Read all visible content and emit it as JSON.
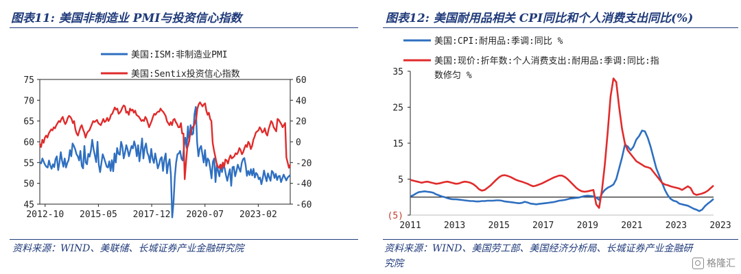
{
  "left": {
    "title": "图表11:  美国非制造业 PMI与投资信心指数",
    "source": "资料来源：WIND、美联储、长城证券产业金融研究院",
    "legend": [
      "美国:ISM:非制造业PMI",
      "美国:Sentix投资信心指数"
    ]
  },
  "right": {
    "title": "图表12:  美国耐用品相关 CPI同比和个人消费支出同比(%)",
    "source_line1": "资料来源：WIND、美国劳工部、美国经济分析局、长城证券产业金融研",
    "source_line2": "究院",
    "legend": [
      "美国:CPI:耐用品:季调:同比 %",
      "美国:现价:折年数:个人消费支出:耐用品:季调:同比:指",
      "数修匀 %"
    ]
  },
  "watermark": "格隆汇",
  "chart_data": [
    {
      "type": "line",
      "x_tick_labels": [
        "2012-10",
        "2015-05",
        "2017-12",
        "2020-07",
        "2023-02"
      ],
      "y_left": {
        "ticks": [
          "45",
          "50",
          "55",
          "60",
          "65",
          "70",
          "75"
        ],
        "ylim": [
          45,
          75
        ]
      },
      "y_right": {
        "ticks": [
          "-60",
          "-40",
          "-20",
          "0",
          "20",
          "40",
          "60"
        ],
        "ylim": [
          -60,
          60
        ]
      },
      "series": [
        {
          "name": "美国:ISM:非制造业PMI",
          "axis": "left",
          "color": "#2e6fc0",
          "values": [
            55.0,
            54.8,
            56.0,
            55.2,
            54.5,
            54.0,
            53.8,
            55.5,
            54.3,
            53.5,
            54.6,
            53.9,
            55.8,
            56.5,
            53.2,
            55.0,
            57.5,
            55.4,
            54.0,
            56.0,
            53.8,
            54.9,
            55.6,
            58.0,
            56.5,
            59.6,
            59.0,
            58.2,
            57.0,
            56.5,
            55.5,
            57.8,
            54.2,
            53.6,
            59.0,
            55.0,
            54.6,
            57.1,
            56.4,
            57.9,
            60.5,
            58.2,
            56.7,
            55.1,
            60.0,
            54.5,
            52.7,
            54.9,
            57.0,
            56.1,
            55.1,
            54.0,
            53.8,
            55.3,
            53.0,
            55.6,
            52.9,
            57.2,
            55.0,
            58.5,
            57.1,
            56.9,
            60.0,
            58.8,
            56.0,
            57.4,
            59.2,
            58.1,
            56.5,
            57.8,
            59.0,
            58.4,
            60.1,
            58.9,
            56.5,
            59.2,
            55.3,
            57.8,
            60.8,
            56.0,
            58.5,
            59.6,
            57.4,
            56.6,
            55.0,
            58.3,
            56.0,
            54.9,
            57.2,
            55.5,
            53.6,
            54.6,
            55.9,
            56.3,
            53.0,
            55.7,
            57.2,
            52.4,
            54.6,
            55.8,
            52.0,
            41.8,
            45.4,
            51.5,
            55.0,
            57.0,
            57.2,
            57.8,
            56.0,
            55.5,
            58.9,
            61.0,
            58.5,
            63.7,
            60.1,
            64.0,
            61.7,
            62.0,
            66.7,
            68.4,
            59.9,
            56.5,
            58.4,
            59.0,
            57.0,
            55.0,
            58.0,
            54.2,
            56.0,
            55.5,
            53.6,
            51.2,
            55.2,
            56.0,
            50.3,
            54.5,
            53.0,
            51.7,
            54.5,
            52.7,
            54.5,
            53.6,
            51.9,
            50.6,
            52.2,
            53.4,
            49.4,
            53.9,
            54.0,
            51.7,
            52.9,
            54.5,
            53.6,
            52.8,
            54.9,
            55.8,
            56.1,
            54.4,
            51.8,
            53.0,
            52.0,
            53.4,
            51.9,
            53.5,
            51.4,
            52.5,
            52.1,
            51.0,
            51.4,
            49.8,
            51.2,
            53.1,
            51.7,
            50.5,
            52.4,
            51.5,
            50.6,
            53.0,
            52.6,
            51.3,
            52.3,
            50.8,
            51.7,
            51.8,
            50.3,
            51.2,
            52.1,
            51.4,
            50.7,
            51.4,
            51.7,
            52.0
          ]
        },
        {
          "name": "美国:Sentix投资信心指数",
          "axis": "right",
          "color": "#e02b2b",
          "values": [
            -2,
            -5,
            2,
            -1,
            4,
            6,
            4,
            8,
            10,
            12,
            11,
            14,
            13,
            16,
            18,
            20,
            19,
            22,
            24,
            20,
            17,
            19,
            23,
            25,
            24,
            22,
            18,
            20,
            12,
            8,
            6,
            10,
            14,
            16,
            12,
            9,
            4,
            8,
            10,
            11,
            14,
            17,
            20,
            19,
            20,
            21,
            18,
            17,
            16,
            19,
            22,
            19,
            20,
            23,
            20,
            22,
            26,
            27,
            30,
            33,
            31,
            32,
            27,
            28,
            30,
            33,
            35,
            34,
            28,
            29,
            26,
            32,
            30,
            31,
            28,
            30,
            26,
            25,
            24,
            22,
            20,
            21,
            20,
            24,
            22,
            18,
            14,
            17,
            20,
            24,
            27,
            26,
            28,
            29,
            29,
            32,
            30,
            29,
            27,
            25,
            20,
            18,
            16,
            19,
            16,
            21,
            22,
            19,
            17,
            14,
            14,
            18,
            8,
            8,
            -36,
            -20,
            -6,
            -2,
            5,
            10,
            14,
            15,
            18,
            22,
            32,
            36,
            38,
            36,
            34,
            36,
            37,
            30,
            26,
            28,
            22,
            20,
            -1,
            -8,
            -14,
            -20,
            -24,
            -25,
            -22,
            -26,
            -20,
            -24,
            -17,
            -18,
            -21,
            -16,
            -13,
            -16,
            -15,
            -14,
            -11,
            -12,
            -10,
            -6,
            -8,
            -12,
            -10,
            -6,
            -3,
            -5,
            0,
            -2,
            -7,
            -4,
            2,
            5,
            9,
            10,
            11,
            14,
            12,
            9,
            10,
            13,
            8,
            6,
            12,
            16,
            20,
            18,
            14,
            12,
            10,
            22,
            21,
            19,
            17,
            14,
            16,
            18,
            -15,
            -20,
            -25,
            -22
          ]
        }
      ]
    },
    {
      "type": "line",
      "x_tick_labels": [
        "2011",
        "2013",
        "2015",
        "2017",
        "2019",
        "2021",
        "2023",
        "2023"
      ],
      "y": {
        "ticks": [
          "(5)",
          "5",
          "15",
          "25",
          "35"
        ],
        "ylim": [
          -5,
          35
        ]
      },
      "series": [
        {
          "name": "美国:CPI:耐用品:季调:同比 %",
          "color": "#2e6fc0",
          "values": [
            0.2,
            0.5,
            1.0,
            1.4,
            1.5,
            1.6,
            1.5,
            1.4,
            1.2,
            0.8,
            0.5,
            0.2,
            0.0,
            -0.3,
            -0.5,
            -0.6,
            -0.6,
            -0.7,
            -0.8,
            -0.9,
            -1.0,
            -1.1,
            -1.1,
            -1.2,
            -1.2,
            -1.1,
            -1.1,
            -1.0,
            -1.0,
            -1.0,
            -0.9,
            -0.9,
            -1.0,
            -1.2,
            -1.3,
            -1.4,
            -1.5,
            -1.6,
            -1.7,
            -1.6,
            -1.3,
            -1.5,
            -1.8,
            -1.9,
            -2.0,
            -1.9,
            -1.8,
            -1.7,
            -1.6,
            -1.5,
            -1.4,
            -1.2,
            -1.0,
            -0.9,
            -0.8,
            -0.6,
            -0.4,
            -0.3,
            -0.2,
            -0.1,
            0.1,
            0.3,
            0.4,
            0.3,
            0.2,
            -0.1,
            -0.8,
            1.0,
            2.0,
            2.6,
            3.0,
            3.5,
            5.0,
            8.0,
            11.0,
            14.5,
            14.1,
            13.0,
            14.0,
            16.0,
            17.0,
            18.5,
            18.3,
            16.5,
            14.0,
            11.0,
            8.0,
            6.0,
            4.0,
            2.0,
            0.5,
            -0.5,
            -1.0,
            -1.2,
            -1.8,
            -2.0,
            -2.2,
            -2.4,
            -2.8,
            -3.2,
            -3.5,
            -3.9,
            -3.5,
            -2.5,
            -1.8,
            -1.2,
            -0.5
          ]
        },
        {
          "name": "美国:现价:折年数:个人消费支出:耐用品:季调:同比:指数修匀 %",
          "color": "#e02b2b",
          "values": [
            4.8,
            4.6,
            4.4,
            4.2,
            4.0,
            4.2,
            4.3,
            4.1,
            3.9,
            3.7,
            3.8,
            4.0,
            4.2,
            4.3,
            4.1,
            3.9,
            3.7,
            3.8,
            4.1,
            4.3,
            4.2,
            4.0,
            3.6,
            3.0,
            2.2,
            1.8,
            2.0,
            2.6,
            3.2,
            4.0,
            4.8,
            5.5,
            6.0,
            6.1,
            5.9,
            5.6,
            5.2,
            4.8,
            4.5,
            4.3,
            4.0,
            3.7,
            3.3,
            3.0,
            3.2,
            3.5,
            3.8,
            4.2,
            4.6,
            5.0,
            5.4,
            5.7,
            6.0,
            6.0,
            5.6,
            5.0,
            4.2,
            3.4,
            2.6,
            2.0,
            1.6,
            1.5,
            1.6,
            1.8,
            2.0,
            -2.0,
            -3.0,
            2.0,
            9.0,
            18.0,
            28.0,
            33.0,
            32.0,
            25.0,
            19.0,
            15.0,
            13.0,
            12.0,
            11.0,
            10.0,
            9.5,
            9.0,
            8.5,
            8.3,
            8.0,
            7.0,
            6.0,
            5.0,
            4.0,
            3.5,
            3.3,
            3.0,
            2.8,
            2.6,
            2.4,
            2.0,
            2.5,
            3.0,
            2.5,
            1.0,
            0.6,
            0.8,
            1.0,
            1.3,
            1.8,
            2.5,
            3.2
          ]
        }
      ]
    }
  ]
}
